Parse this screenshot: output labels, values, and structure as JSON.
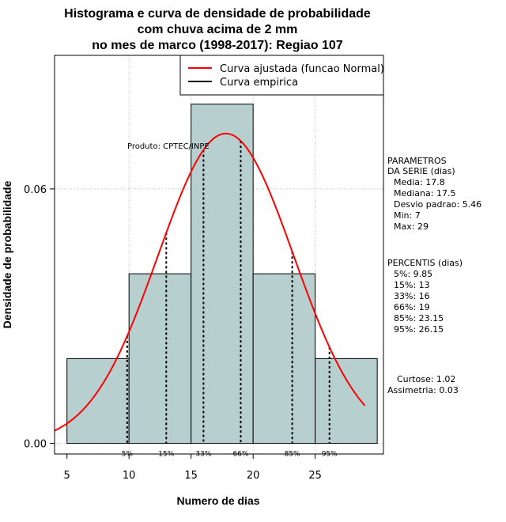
{
  "chart_data": {
    "type": "bar",
    "title": [
      "Histograma e curva de densidade de probabilidade",
      "com chuva acima de 2 mm",
      "no mes de marco (1998-2017): Regiao 107"
    ],
    "xlabel": "Numero de dias",
    "ylabel": "Densidade de probabilidade",
    "xlim": [
      4,
      30.5
    ],
    "ylim": [
      -0.0025,
      0.0915
    ],
    "x_ticks": [
      5,
      10,
      15,
      20,
      25
    ],
    "y_ticks": [
      0.0,
      0.06
    ],
    "y_tick_labels": [
      "0.00",
      "0.06"
    ],
    "grid_x": [
      10,
      15,
      20,
      25
    ],
    "grid_y": [
      0.0,
      0.06
    ],
    "bins": [
      {
        "from": 5,
        "to": 10,
        "density": 0.02
      },
      {
        "from": 10,
        "to": 15,
        "density": 0.04
      },
      {
        "from": 15,
        "to": 20,
        "density": 0.08
      },
      {
        "from": 20,
        "to": 25,
        "density": 0.04
      },
      {
        "from": 25,
        "to": 30,
        "density": 0.02
      }
    ],
    "fitted_curve": {
      "name": "Curva ajustada (funcao Normal)",
      "mean": 17.8,
      "sd": 5.46,
      "from": 4,
      "to": 29,
      "color": "#ff0000"
    },
    "empirical_curve": {
      "name": "Curva empirica",
      "color": "#000000"
    },
    "percentiles": [
      {
        "label": "5%",
        "value": 9.85
      },
      {
        "label": "15%",
        "value": 13
      },
      {
        "label": "33%",
        "value": 16
      },
      {
        "label": "66%",
        "value": 19
      },
      {
        "label": "85%",
        "value": 23.15
      },
      {
        "label": "95%",
        "value": 26.15
      }
    ],
    "annotation": "Produto: CPTEC/INPE",
    "params_panel": [
      "PARAMETROS",
      "DA SERIE (dias)",
      "Media: 17.8",
      "Mediana: 17.5",
      "Desvio padrao: 5.46",
      "Min: 7",
      "Max: 29"
    ],
    "percentis_panel": [
      "PERCENTIS (dias)",
      "5%: 9.85",
      "15%: 13",
      "33%: 16",
      "66%: 19",
      "85%: 23.15",
      "95%: 26.15"
    ],
    "stats_panel": [
      "Curtose: 1.02",
      "Assimetria: 0.03"
    ],
    "colors": {
      "bar_fill": "#b7cfcf",
      "bar_edge": "#000000",
      "grid": "#bebebe",
      "fit": "#ff0000"
    }
  }
}
